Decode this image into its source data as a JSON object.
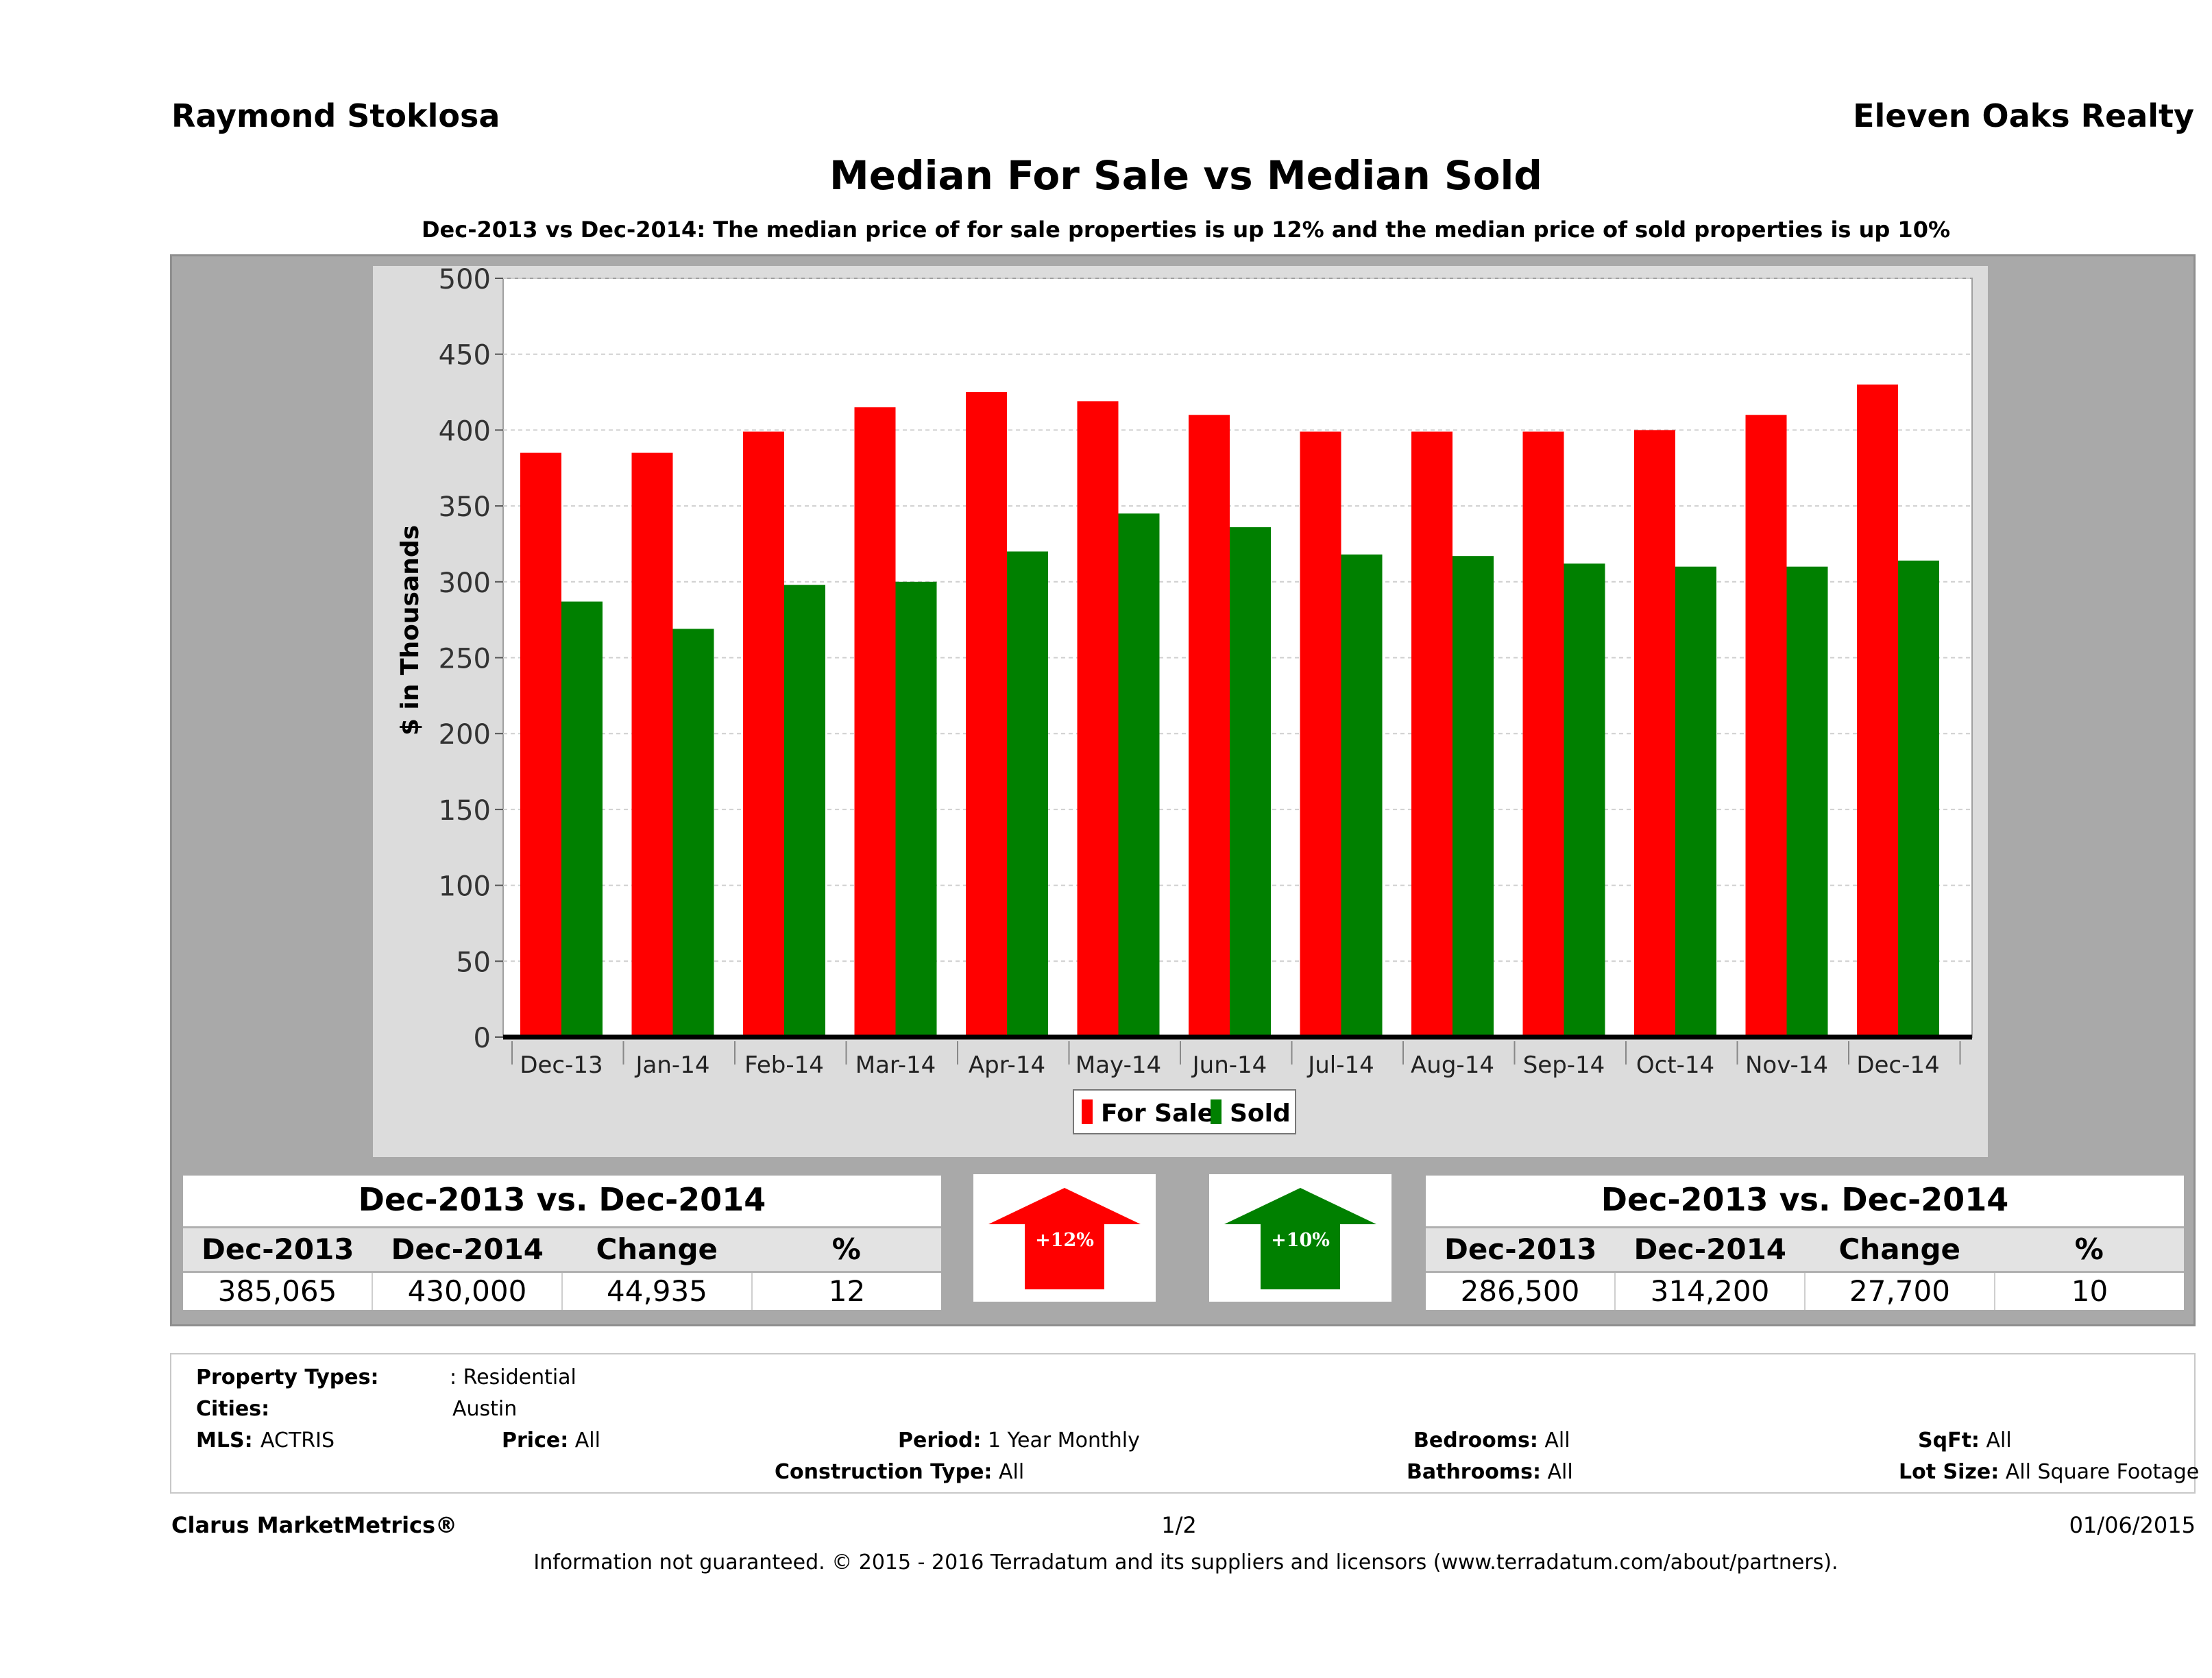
{
  "header": {
    "agent": "Raymond Stoklosa",
    "company": "Eleven Oaks Realty",
    "title": "Median For Sale vs Median Sold",
    "subtitle": "Dec-2013 vs Dec-2014: The median price of for sale properties is up 12% and the median price of sold properties is up 10%"
  },
  "chart_data": {
    "type": "bar",
    "title": "Median For Sale vs Median Sold",
    "xlabel": "",
    "ylabel": "$ in Thousands",
    "ylim": [
      0,
      500
    ],
    "yticks": [
      0,
      50,
      100,
      150,
      200,
      250,
      300,
      350,
      400,
      450,
      500
    ],
    "grid": true,
    "legend_position": "bottom-center",
    "categories": [
      "Dec-13",
      "Jan-14",
      "Feb-14",
      "Mar-14",
      "Apr-14",
      "May-14",
      "Jun-14",
      "Jul-14",
      "Aug-14",
      "Sep-14",
      "Oct-14",
      "Nov-14",
      "Dec-14"
    ],
    "series": [
      {
        "name": "For Sale",
        "color": "#ff0000",
        "values": [
          385,
          385,
          399,
          415,
          425,
          419,
          410,
          399,
          399,
          399,
          400,
          410,
          430
        ]
      },
      {
        "name": "Sold",
        "color": "#008000",
        "values": [
          287,
          269,
          298,
          300,
          320,
          345,
          336,
          318,
          317,
          312,
          310,
          310,
          314
        ]
      }
    ]
  },
  "for_sale_table": {
    "caption": "Dec-2013 vs. Dec-2014",
    "headers": [
      "Dec-2013",
      "Dec-2014",
      "Change",
      "%"
    ],
    "values": [
      "385,065",
      "430,000",
      "44,935",
      "12"
    ]
  },
  "sold_table": {
    "caption": "Dec-2013 vs. Dec-2014",
    "headers": [
      "Dec-2013",
      "Dec-2014",
      "Change",
      "%"
    ],
    "values": [
      "286,500",
      "314,200",
      "27,700",
      "10"
    ]
  },
  "for_sale_arrow": {
    "label": "+12%",
    "color": "#ff0000"
  },
  "sold_arrow": {
    "label": "+10%",
    "color": "#008000"
  },
  "filters": {
    "property_types_label": "Property Types:",
    "property_types_value": ": Residential",
    "cities_label": "Cities:",
    "cities_value": "Austin",
    "mls_label": "MLS:",
    "mls_value": "ACTRIS",
    "price_label": "Price:",
    "price_value": "All",
    "period_label": "Period:",
    "period_value": "1 Year Monthly",
    "construction_label": "Construction Type:",
    "construction_value": "All",
    "bedrooms_label": "Bedrooms:",
    "bedrooms_value": "All",
    "bathrooms_label": "Bathrooms:",
    "bathrooms_value": "All",
    "sqft_label": "SqFt:",
    "sqft_value": "All",
    "lot_label": "Lot Size:",
    "lot_value": "All Square Footage"
  },
  "footer": {
    "brand": "Clarus MarketMetrics®",
    "page": "1/2",
    "date": "01/06/2015",
    "disclaimer": "Information not guaranteed. © 2015 - 2016 Terradatum and its suppliers and licensors (www.terradatum.com/about/partners)."
  }
}
